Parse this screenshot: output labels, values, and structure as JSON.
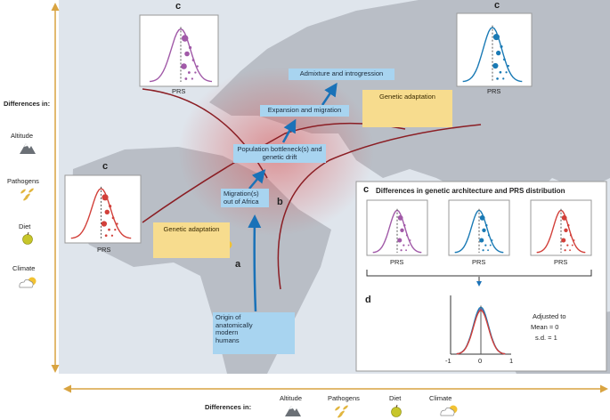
{
  "left_legend": {
    "title": "Differences in:",
    "items": [
      "Altitude",
      "Pathogens",
      "Diet",
      "Climate"
    ]
  },
  "bottom_legend": {
    "title": "Differences in:",
    "items": [
      "Altitude",
      "Pathogens",
      "Diet",
      "Climate"
    ]
  },
  "boxes": {
    "admixture": "Admixture and introgression",
    "expansion": "Expansion and migration",
    "bottleneck": "Population bottleneck(s) and genetic drift",
    "migration": "Migration(s) out of Africa",
    "origin": "Origin of anatomically modern humans",
    "adaptation_east": "Genetic adaptation",
    "adaptation_africa": "Genetic adaptation"
  },
  "labels": {
    "a": "a",
    "b": "b"
  },
  "prs_panels": [
    {
      "label": "c",
      "axis": "PRS"
    },
    {
      "label": "c",
      "axis": "PRS"
    },
    {
      "label": "c",
      "axis": "PRS"
    }
  ],
  "inset": {
    "label": "c",
    "title": "Differences in genetic architecture and PRS distribution",
    "axes": [
      "PRS",
      "PRS",
      "PRS"
    ],
    "d": {
      "label": "d",
      "note": [
        "Adjusted to",
        "Mean = 0",
        "s.d. = 1"
      ],
      "ticks": [
        "-1",
        "0",
        "1"
      ]
    }
  }
}
